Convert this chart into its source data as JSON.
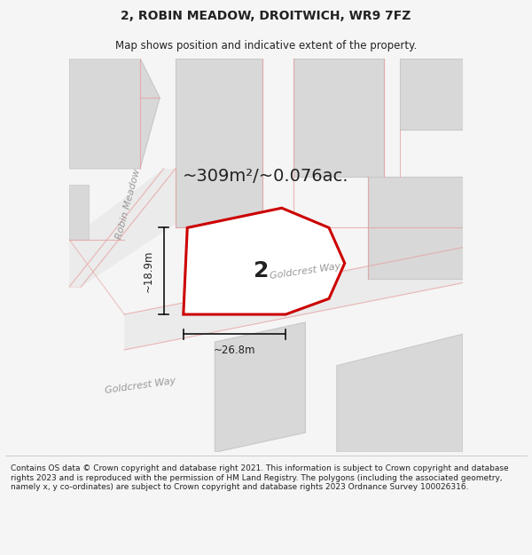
{
  "title": "2, ROBIN MEADOW, DROITWICH, WR9 7FZ",
  "subtitle": "Map shows position and indicative extent of the property.",
  "area_label": "~309m²/~0.076ac.",
  "plot_number": "2",
  "dim_width": "~26.8m",
  "dim_height": "~18.9m",
  "street_robin": "Robin Meadow",
  "street_goldcrest_mid": "Goldcrest Way",
  "street_goldcrest_bot": "Goldcrest Way",
  "footer": "Contains OS data © Crown copyright and database right 2021. This information is subject to Crown copyright and database rights 2023 and is reproduced with the permission of HM Land Registry. The polygons (including the associated geometry, namely x, y co-ordinates) are subject to Crown copyright and database rights 2023 Ordnance Survey 100026316.",
  "bg_color": "#f5f5f5",
  "map_bg": "#f0eeee",
  "road_fill": "#e8e8e8",
  "road_stroke": "#e8a0a0",
  "plot_stroke": "#cc0000",
  "plot_fill": "#ffffff",
  "block_fill": "#d8d8d8",
  "block_stroke": "#c8c8c8",
  "dim_line_color": "#111111",
  "text_color": "#222222",
  "street_label_color": "#999999",
  "title_fontsize": 10,
  "subtitle_fontsize": 8.5,
  "area_fontsize": 14,
  "plot_num_fontsize": 18,
  "dim_fontsize": 8.5,
  "street_fontsize": 8,
  "footer_fontsize": 6.5
}
